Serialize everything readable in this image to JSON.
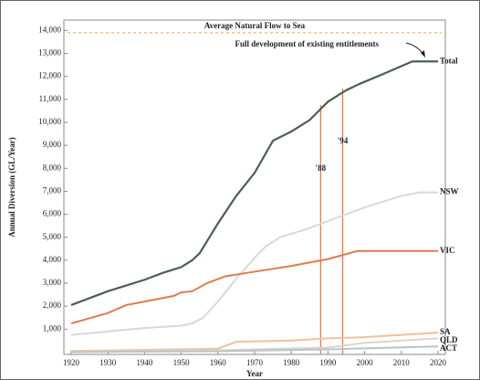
{
  "chart_data": {
    "type": "line",
    "y_label": "Annual Diversion (GL/Year)",
    "x_label": "Year",
    "xlim": [
      1918,
      2022
    ],
    "xticks": [
      1920,
      1930,
      1940,
      1950,
      1960,
      1970,
      1980,
      1990,
      2000,
      2010,
      2020
    ],
    "ylim": [
      -100,
      14450
    ],
    "yticks": [
      {
        "value": 1000,
        "label": "1,000"
      },
      {
        "value": 2000,
        "label": "2,000"
      },
      {
        "value": 3000,
        "label": "3,000"
      },
      {
        "value": 4000,
        "label": "4,000"
      },
      {
        "value": 5000,
        "label": "5,000"
      },
      {
        "value": 6000,
        "label": "6,000"
      },
      {
        "value": 7000,
        "label": "7,000"
      },
      {
        "value": 8000,
        "label": "8,000"
      },
      {
        "value": 9000,
        "label": "9,000"
      },
      {
        "value": 10000,
        "label": "10,000"
      },
      {
        "value": 11000,
        "label": "11,000"
      },
      {
        "value": 12000,
        "label": "12,000"
      },
      {
        "value": 13000,
        "label": "13,000"
      },
      {
        "value": 14000,
        "label": "14,000"
      }
    ],
    "reference_line": {
      "label": "Average Natural Flow to Sea",
      "value": 13900,
      "color": "#f0c27a"
    },
    "annotation": "Full development of existing entitlements",
    "vertical_lines": [
      {
        "label": "'88",
        "x": 1988
      },
      {
        "label": "'94",
        "x": 1994
      }
    ],
    "vertical_line_color": "#d9794f",
    "series": [
      {
        "name": "Total",
        "color": "#4b5f53",
        "x": [
          1920,
          1930,
          1940,
          1945,
          1950,
          1953,
          1955,
          1960,
          1965,
          1970,
          1975,
          1980,
          1985,
          1990,
          1995,
          1999,
          2005,
          2013,
          2020
        ],
        "values": [
          2050,
          2650,
          3150,
          3450,
          3700,
          4000,
          4300,
          5600,
          6800,
          7800,
          9200,
          9600,
          10100,
          10900,
          11400,
          11700,
          12100,
          12650,
          12650
        ]
      },
      {
        "name": "NSW",
        "color": "#d6dad6",
        "x": [
          1920,
          1930,
          1940,
          1950,
          1953,
          1956,
          1960,
          1965,
          1970,
          1973,
          1977,
          1985,
          1990,
          2000,
          2010,
          2015,
          2020
        ],
        "values": [
          750,
          900,
          1050,
          1150,
          1250,
          1500,
          2200,
          3200,
          4100,
          4600,
          5000,
          5400,
          5700,
          6300,
          6800,
          6950,
          6950
        ]
      },
      {
        "name": "VIC",
        "color": "#e07a50",
        "x": [
          1920,
          1930,
          1935,
          1940,
          1948,
          1950,
          1953,
          1957,
          1962,
          1970,
          1980,
          1990,
          1998,
          2020
        ],
        "values": [
          1250,
          1700,
          2050,
          2200,
          2450,
          2600,
          2650,
          3000,
          3300,
          3500,
          3750,
          4050,
          4400,
          4400
        ]
      },
      {
        "name": "SA",
        "color": "#f2c09a",
        "x": [
          1920,
          1960,
          1965,
          1980,
          1990,
          2000,
          2020
        ],
        "values": [
          50,
          150,
          450,
          500,
          600,
          650,
          850
        ]
      },
      {
        "name": "QLD",
        "color": "#dcd6c0",
        "x": [
          1920,
          1960,
          1990,
          2000,
          2020
        ],
        "values": [
          20,
          80,
          200,
          400,
          600
        ]
      },
      {
        "name": "ACT",
        "color": "#b8c4cc",
        "x": [
          1920,
          1960,
          1990,
          2020
        ],
        "values": [
          0,
          40,
          120,
          250
        ]
      }
    ]
  }
}
